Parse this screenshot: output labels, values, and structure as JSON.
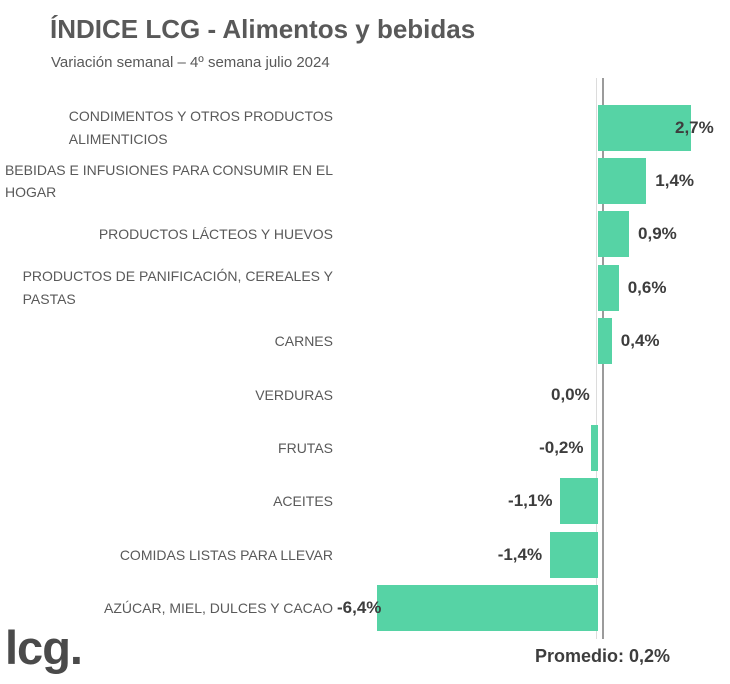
{
  "colors": {
    "bar": "#56d3a5",
    "category_text": "#595959",
    "value_text": "#3d3d3d",
    "title_text": "#595959",
    "axis_line": "#9b9b9b",
    "logo_text": "#4a4a4a"
  },
  "footer": {
    "logo_text": "lcg.",
    "average_note": "Promedio: 0,2%"
  },
  "chart_data": {
    "type": "bar",
    "orientation": "horizontal",
    "title": "ÍNDICE LCG - Alimentos y bebidas",
    "subtitle": "Variación semanal – 4º semana julio 2024",
    "unit": "%",
    "xlim": [
      -7.6,
      3.8
    ],
    "grid": false,
    "zero_axis_line": true,
    "categories": [
      "CONDIMENTOS Y OTROS PRODUCTOS\nALIMENTICIOS",
      "BEBIDAS E INFUSIONES PARA CONSUMIR EN EL\nHOGAR",
      "PRODUCTOS LÁCTEOS Y HUEVOS",
      "PRODUCTOS DE PANIFICACIÓN, CEREALES Y\nPASTAS",
      "CARNES",
      "VERDURAS",
      "FRUTAS",
      "ACEITES",
      "COMIDAS LISTAS PARA LLEVAR",
      "AZÚCAR, MIEL, DULCES Y CACAO"
    ],
    "values": [
      2.7,
      1.4,
      0.9,
      0.6,
      0.4,
      0.0,
      -0.2,
      -1.1,
      -1.4,
      -6.4
    ],
    "value_labels": [
      "2,7%",
      "1,4%",
      "0,9%",
      "0,6%",
      "0,4%",
      "0,0%",
      "-0,2%",
      "-1,1%",
      "-1,4%",
      "-6,4%"
    ],
    "average_note": "Promedio: 0,2%"
  }
}
